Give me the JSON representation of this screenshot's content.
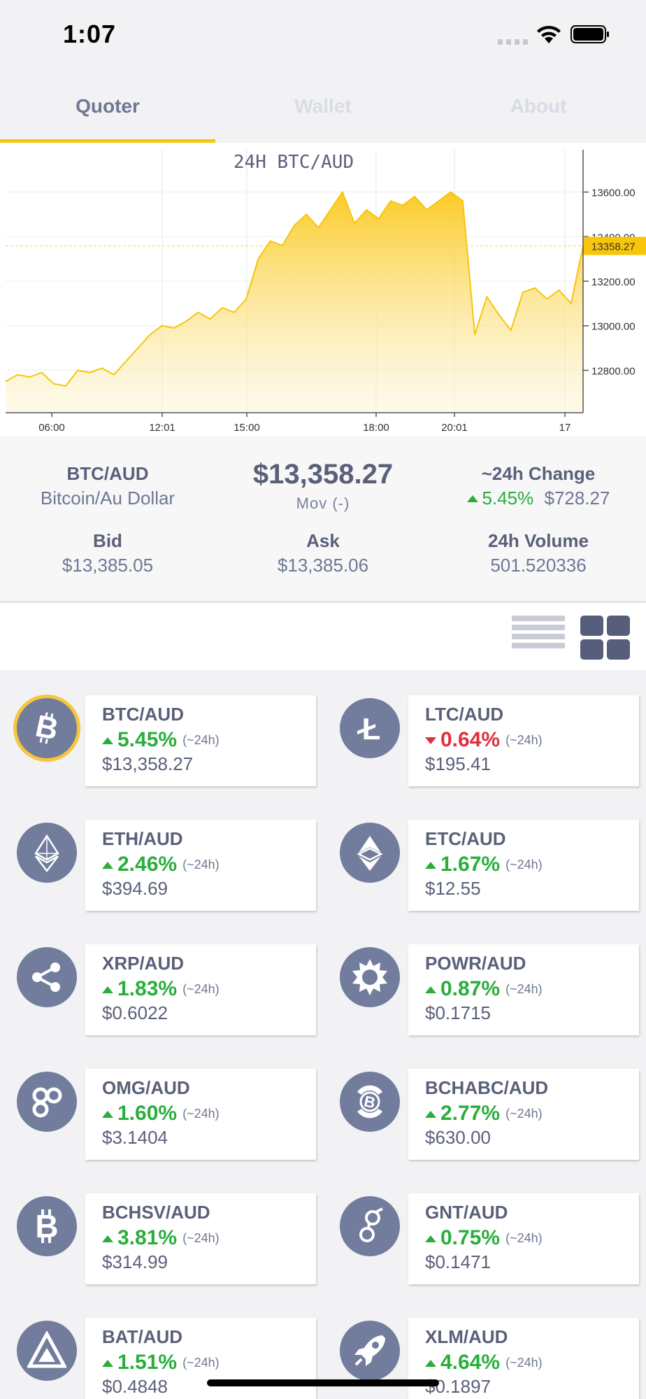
{
  "status_bar": {
    "time": "1:07"
  },
  "tabs": [
    {
      "label": "Quoter",
      "active": true
    },
    {
      "label": "Wallet",
      "active": false
    },
    {
      "label": "About",
      "active": false
    }
  ],
  "chart_data": {
    "type": "area",
    "title": "24H BTC/AUD",
    "x_tick_labels": [
      "06:00",
      "12:01",
      "15:00",
      "18:00",
      "20:01",
      "17"
    ],
    "y_tick_labels": [
      "13600.00",
      "13400.00",
      "13200.00",
      "13000.00",
      "12800.00"
    ],
    "ylim": [
      12610,
      13790
    ],
    "current_value_label": "13358.27",
    "current_value": 13358.27,
    "color": "#f7c50a",
    "x_hours": [
      0,
      0.5,
      1,
      1.5,
      2,
      2.5,
      3,
      3.5,
      4,
      4.5,
      5,
      5.5,
      6,
      6.5,
      7,
      7.5,
      8,
      8.5,
      9,
      9.5,
      10,
      10.5,
      11,
      11.5,
      12,
      12.5,
      13,
      13.5,
      14,
      14.5,
      15,
      15.5,
      16,
      16.5,
      17,
      17.5,
      18,
      18.5,
      19,
      19.5,
      20,
      20.5,
      21,
      21.5,
      22,
      22.5,
      23,
      23.5,
      24
    ],
    "values": [
      12750,
      12780,
      12770,
      12790,
      12740,
      12730,
      12800,
      12790,
      12810,
      12780,
      12840,
      12900,
      12960,
      13000,
      12990,
      13020,
      13060,
      13030,
      13080,
      13060,
      13120,
      13300,
      13380,
      13360,
      13450,
      13500,
      13440,
      13520,
      13600,
      13460,
      13520,
      13480,
      13560,
      13540,
      13580,
      13520,
      13560,
      13600,
      13560,
      12960,
      13130,
      13050,
      12980,
      13150,
      13170,
      13120,
      13160,
      13100,
      13358.27
    ]
  },
  "summary": {
    "pair": "BTC/AUD",
    "pair_name": "Bitcoin/Au Dollar",
    "price": "$13,358.27",
    "mov": "Mov (-)",
    "change_title": "~24h Change",
    "change_pct": "5.45%",
    "change_abs": "$728.27",
    "bid_label": "Bid",
    "bid": "$13,385.05",
    "ask_label": "Ask",
    "ask": "$13,385.06",
    "volume_label": "24h Volume",
    "volume": "501.520336"
  },
  "view_toggle": {
    "list_icon": "list-view-icon",
    "grid_icon": "grid-view-icon",
    "active": "grid"
  },
  "pairs": [
    {
      "pair": "BTC/AUD",
      "change": "5.45%",
      "direction": "up",
      "period": "(~24h)",
      "price": "$13,358.27",
      "icon": "bitcoin-icon",
      "selected": true
    },
    {
      "pair": "LTC/AUD",
      "change": "0.64%",
      "direction": "down",
      "period": "(~24h)",
      "price": "$195.41",
      "icon": "litecoin-icon",
      "selected": false
    },
    {
      "pair": "ETH/AUD",
      "change": "2.46%",
      "direction": "up",
      "period": "(~24h)",
      "price": "$394.69",
      "icon": "ethereum-icon",
      "selected": false
    },
    {
      "pair": "ETC/AUD",
      "change": "1.67%",
      "direction": "up",
      "period": "(~24h)",
      "price": "$12.55",
      "icon": "ethereum-classic-icon",
      "selected": false
    },
    {
      "pair": "XRP/AUD",
      "change": "1.83%",
      "direction": "up",
      "period": "(~24h)",
      "price": "$0.6022",
      "icon": "ripple-icon",
      "selected": false
    },
    {
      "pair": "POWR/AUD",
      "change": "0.87%",
      "direction": "up",
      "period": "(~24h)",
      "price": "$0.1715",
      "icon": "power-ledger-icon",
      "selected": false
    },
    {
      "pair": "OMG/AUD",
      "change": "1.60%",
      "direction": "up",
      "period": "(~24h)",
      "price": "$3.1404",
      "icon": "omisego-icon",
      "selected": false
    },
    {
      "pair": "BCHABC/AUD",
      "change": "2.77%",
      "direction": "up",
      "period": "(~24h)",
      "price": "$630.00",
      "icon": "bitcoin-cash-icon",
      "selected": false
    },
    {
      "pair": "BCHSV/AUD",
      "change": "3.81%",
      "direction": "up",
      "period": "(~24h)",
      "price": "$314.99",
      "icon": "bitcoin-sv-icon",
      "selected": false
    },
    {
      "pair": "GNT/AUD",
      "change": "0.75%",
      "direction": "up",
      "period": "(~24h)",
      "price": "$0.1471",
      "icon": "golem-icon",
      "selected": false
    },
    {
      "pair": "BAT/AUD",
      "change": "1.51%",
      "direction": "up",
      "period": "(~24h)",
      "price": "$0.4848",
      "icon": "bat-icon",
      "selected": false
    },
    {
      "pair": "XLM/AUD",
      "change": "4.64%",
      "direction": "up",
      "period": "(~24h)",
      "price": "$0.1897",
      "icon": "stellar-icon",
      "selected": false
    }
  ]
}
